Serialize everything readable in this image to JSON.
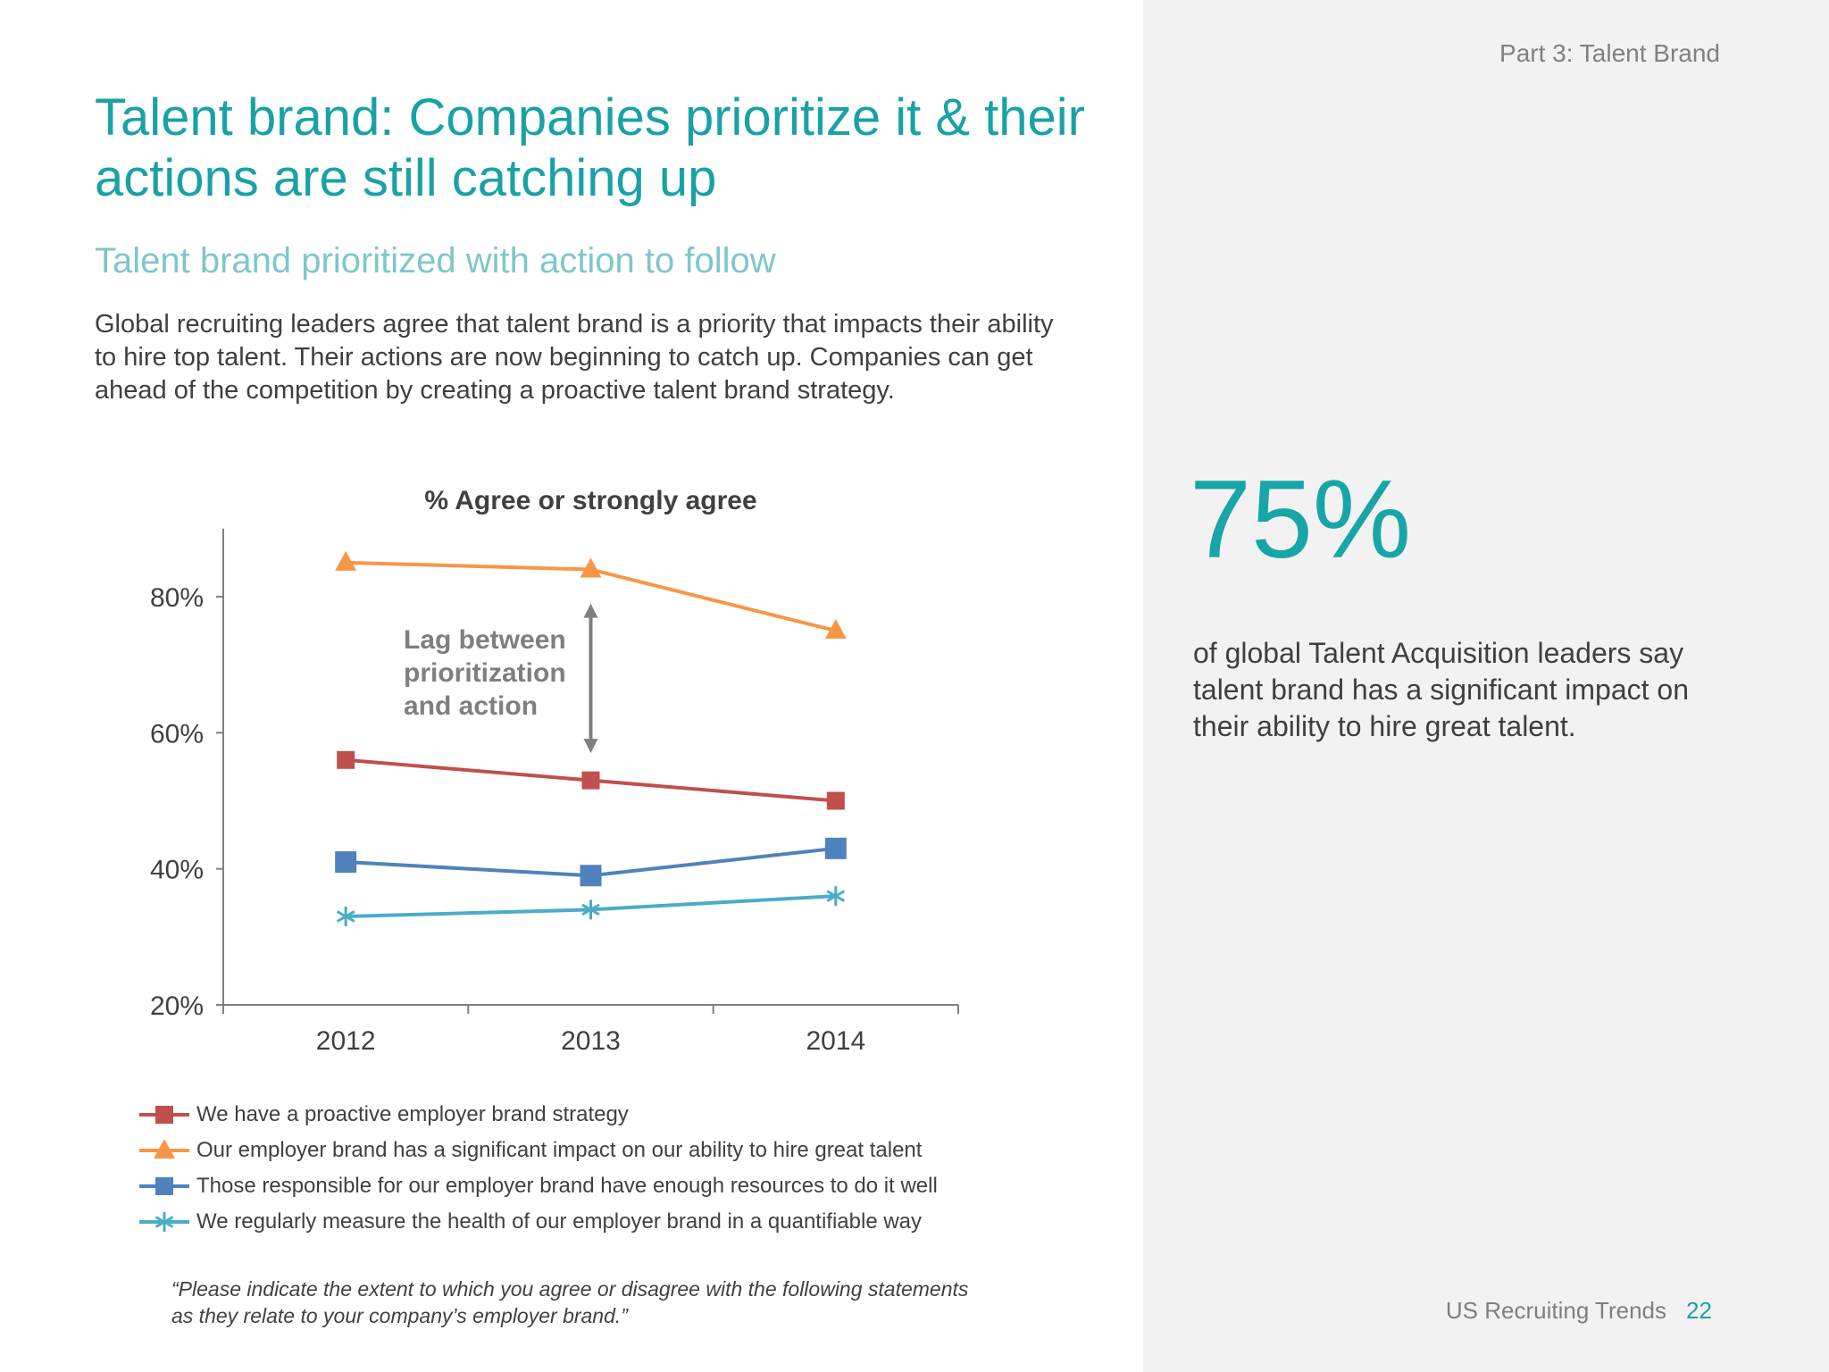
{
  "header": {
    "section_label": "Part 3: Talent Brand",
    "title": "Talent brand: Companies prioritize it & their actions are still catching up",
    "subtitle": "Talent brand prioritized with action to follow",
    "body": "Global recruiting leaders agree that talent brand is a priority that impacts their ability to hire top talent. Their actions are now beginning to catch up. Companies can get ahead of the competition by creating a proactive talent brand strategy."
  },
  "stat": {
    "value": "75%",
    "caption": "of global Talent Acquisition leaders say talent brand has a significant impact on their ability to hire great talent."
  },
  "chart_data": {
    "type": "line",
    "title": "% Agree or strongly agree",
    "x": [
      "2012",
      "2013",
      "2014"
    ],
    "ylim": [
      20,
      90
    ],
    "yticks": [
      20,
      40,
      60,
      80
    ],
    "ytick_labels": [
      "20%",
      "40%",
      "60%",
      "80%"
    ],
    "grid": false,
    "legend_position": "bottom",
    "annotation": {
      "lines": [
        "Lag between",
        "prioritization",
        "and action"
      ],
      "arrow_x": "2013",
      "arrow_from": 79,
      "arrow_to": 57,
      "color": "#7f7f7f"
    },
    "series": [
      {
        "name": "We have a proactive employer brand strategy",
        "values": [
          56,
          53,
          50
        ],
        "color": "#c0504d",
        "marker": "square"
      },
      {
        "name": "Our employer brand has a significant impact on our ability to hire great talent",
        "values": [
          85,
          84,
          75
        ],
        "color": "#f79646",
        "marker": "triangle"
      },
      {
        "name": "Those responsible for our employer brand have enough resources to do it well",
        "values": [
          41,
          39,
          43
        ],
        "color": "#4f81bd",
        "marker": "square-large"
      },
      {
        "name": "We regularly measure the health of our employer brand in a quantifiable way",
        "values": [
          33,
          34,
          36
        ],
        "color": "#4bacc6",
        "marker": "star"
      }
    ]
  },
  "footnote": "“Please indicate the extent to which you agree or disagree with the following statements as they relate to your company’s employer brand.”",
  "footer": {
    "brand": "US Recruiting Trends",
    "page": "22"
  }
}
